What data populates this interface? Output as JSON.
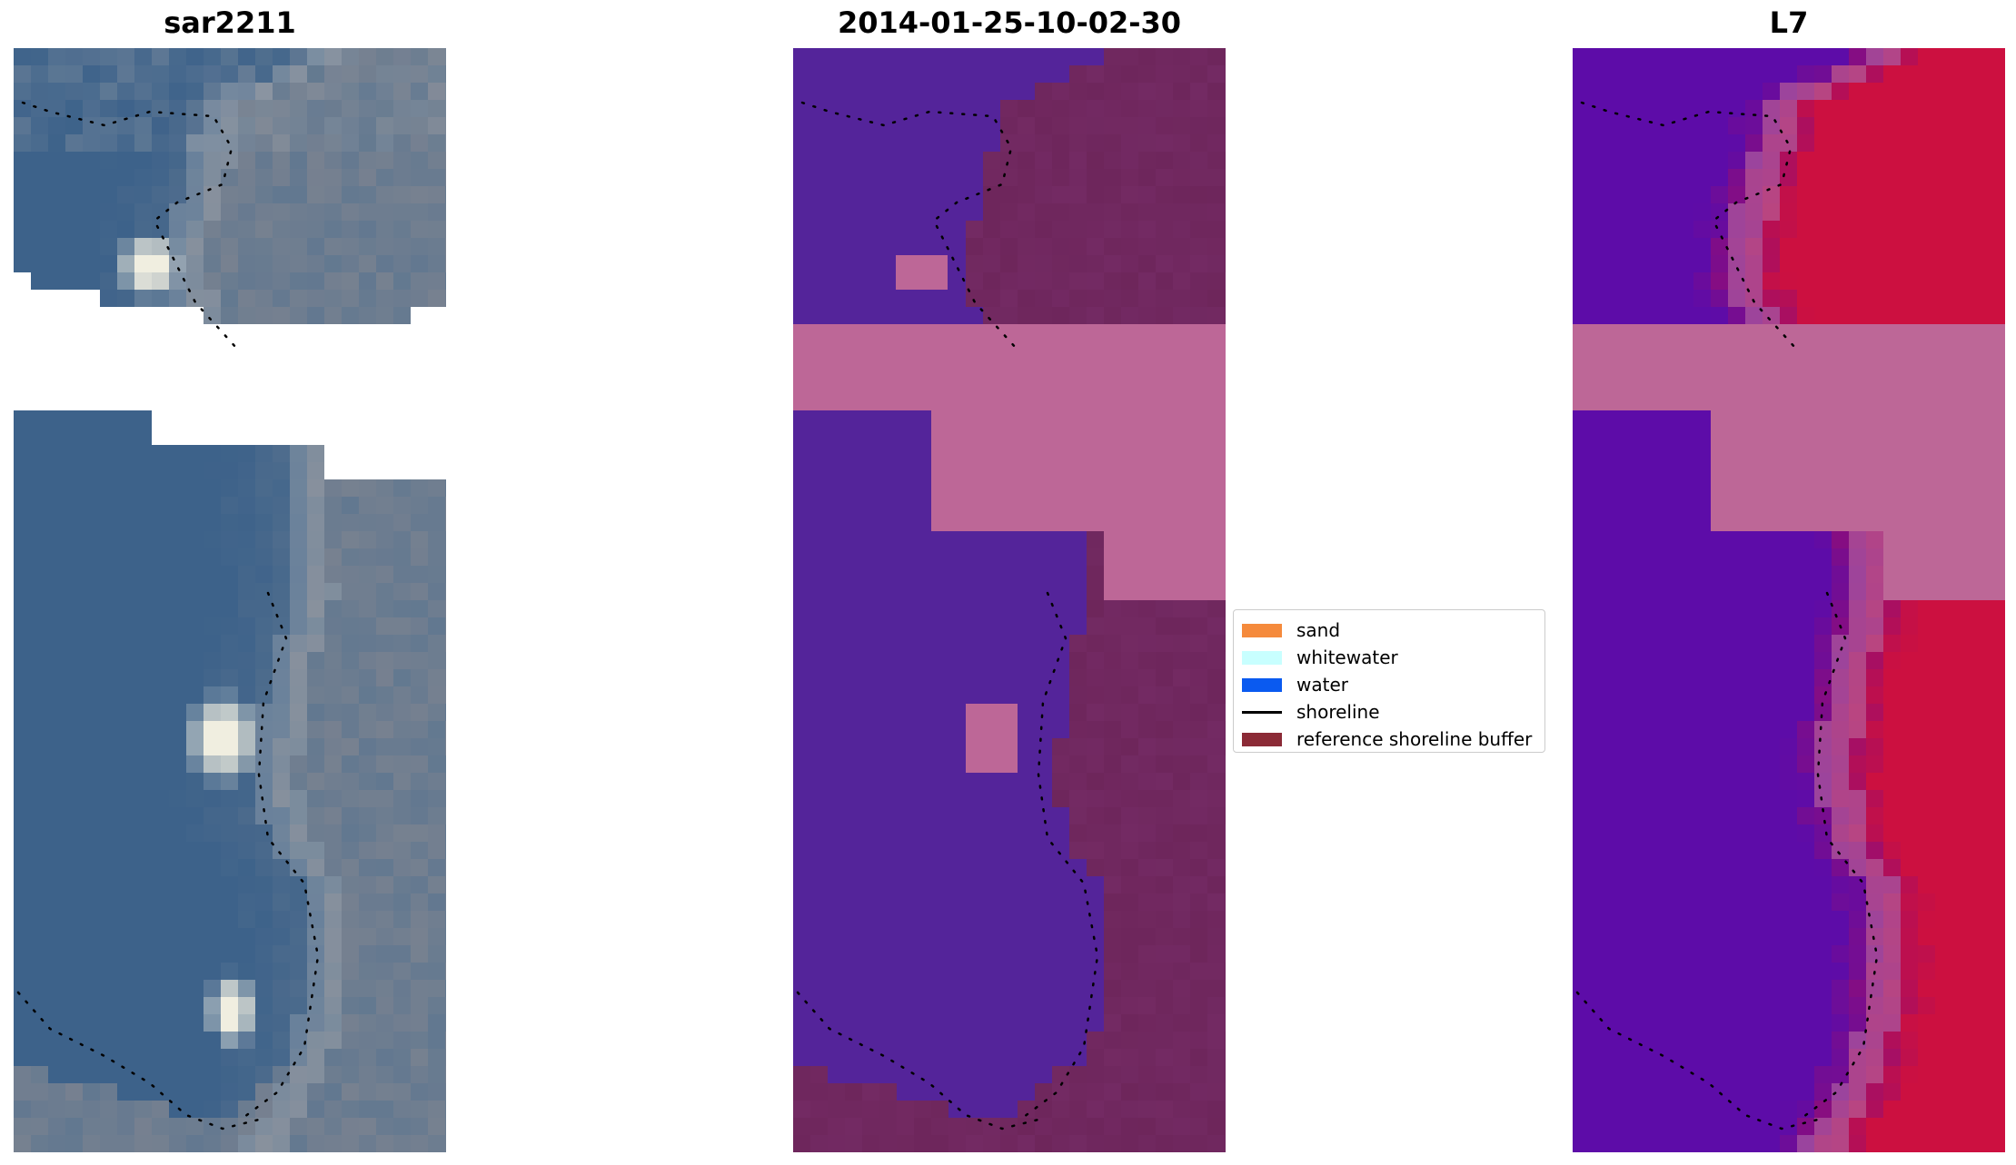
{
  "titles": {
    "left": "sar2211",
    "middle": "2014-01-25-10-02-30",
    "right": "L7"
  },
  "legend": {
    "items": [
      {
        "label": "sand",
        "kind": "patch",
        "color": "#f58a3c"
      },
      {
        "label": "whitewater",
        "kind": "patch",
        "color": "#c8ffff"
      },
      {
        "label": "water",
        "kind": "patch",
        "color": "#0a5af0"
      },
      {
        "label": "shoreline",
        "kind": "line",
        "color": "#000000"
      },
      {
        "label": "reference shoreline buffer",
        "kind": "patch",
        "color": "#8b2a36"
      }
    ]
  },
  "colors": {
    "water_class": "#54249a",
    "land_class": "#732a63",
    "cloud_mask": "#bd6797",
    "index_low": "#5d0ca8",
    "index_high": "#cc1040",
    "rgb_water": "#3d628a",
    "rgb_land": "#627890",
    "rgb_whitewater": "#f0eee0"
  }
}
